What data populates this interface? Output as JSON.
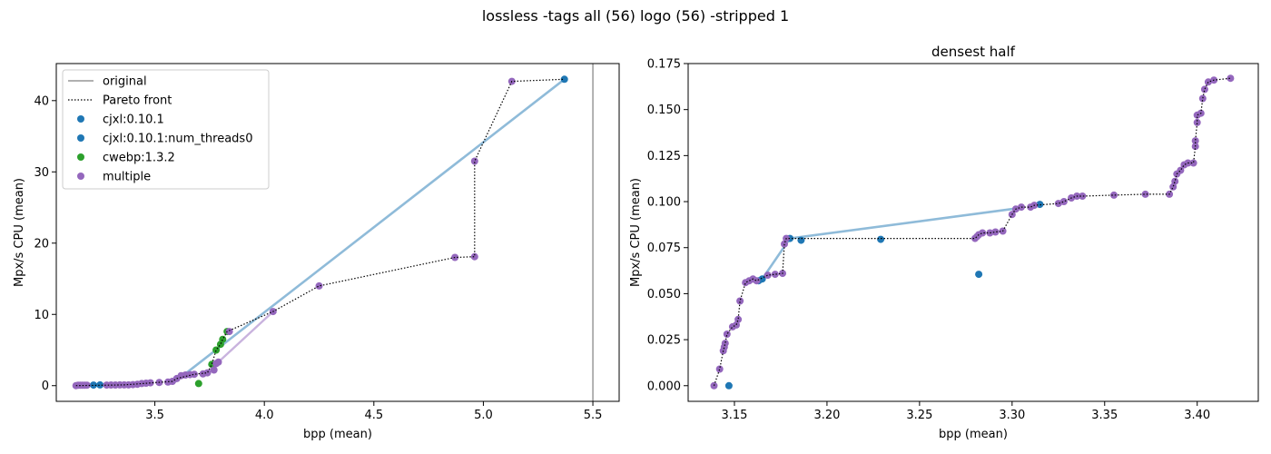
{
  "figure": {
    "suptitle": "lossless -tags all (56) logo (56) -stripped 1"
  },
  "colors": {
    "cjxl": "#1f77b4",
    "cwebp": "#2ca02c",
    "multiple": "#9467bd",
    "original": "#808080",
    "pareto": "#000000",
    "cjxl_line": "#8fbbd9",
    "multiple_line": "#c9b3de"
  },
  "chart_data": [
    {
      "type": "scatter",
      "title": "",
      "xlabel": "bpp (mean)",
      "ylabel": "Mpx/s CPU (mean)",
      "xlim": [
        3.05,
        5.62
      ],
      "ylim": [
        -2.2,
        45.2
      ],
      "xticks": [
        "3.5",
        "4.0",
        "4.5",
        "5.0",
        "5.5"
      ],
      "yticks": [
        "0",
        "10",
        "20",
        "30",
        "40"
      ],
      "legend": {
        "placement": "top-left",
        "entries": [
          "original",
          "Pareto front",
          "cjxl:0.10.1",
          "cjxl:0.10.1:num_threads0",
          "cwebp:1.3.2",
          "multiple"
        ]
      },
      "original_x": 5.5,
      "series": [
        {
          "name": "cjxl:0.10.1",
          "points": [
            [
              3.22,
              0.08
            ],
            [
              5.37,
              43.0
            ]
          ]
        },
        {
          "name": "cjxl:0.10.1:num_threads0",
          "points": [
            [
              3.25,
              0.1
            ]
          ]
        },
        {
          "name": "cwebp:1.3.2",
          "points": [
            [
              3.7,
              0.3
            ],
            [
              3.76,
              3.0
            ],
            [
              3.78,
              5.0
            ],
            [
              3.8,
              5.8
            ],
            [
              3.81,
              6.5
            ],
            [
              3.83,
              7.6
            ]
          ]
        },
        {
          "name": "multiple",
          "points": [
            [
              3.14,
              0.0
            ],
            [
              3.15,
              0.05
            ],
            [
              3.16,
              0.05
            ],
            [
              3.17,
              0.06
            ],
            [
              3.18,
              0.06
            ],
            [
              3.19,
              0.07
            ],
            [
              3.28,
              0.08
            ],
            [
              3.3,
              0.09
            ],
            [
              3.32,
              0.09
            ],
            [
              3.34,
              0.1
            ],
            [
              3.36,
              0.1
            ],
            [
              3.38,
              0.1
            ],
            [
              3.4,
              0.15
            ],
            [
              3.42,
              0.2
            ],
            [
              3.44,
              0.3
            ],
            [
              3.46,
              0.35
            ],
            [
              3.48,
              0.4
            ],
            [
              3.52,
              0.45
            ],
            [
              3.56,
              0.5
            ],
            [
              3.58,
              0.6
            ],
            [
              3.6,
              1.0
            ],
            [
              3.62,
              1.4
            ],
            [
              3.64,
              1.5
            ],
            [
              3.66,
              1.55
            ],
            [
              3.68,
              1.6
            ],
            [
              3.72,
              1.65
            ],
            [
              3.74,
              1.8
            ],
            [
              3.77,
              2.2
            ],
            [
              3.78,
              3.1
            ],
            [
              3.79,
              3.3
            ],
            [
              3.84,
              7.6
            ],
            [
              4.04,
              10.4
            ],
            [
              4.25,
              14.0
            ],
            [
              4.87,
              18.0
            ],
            [
              4.96,
              18.1
            ],
            [
              4.96,
              31.5
            ],
            [
              5.13,
              42.7
            ]
          ]
        }
      ],
      "pareto_front": [
        [
          3.14,
          0.0
        ],
        [
          3.36,
          0.1
        ],
        [
          3.58,
          0.6
        ],
        [
          3.6,
          1.0
        ],
        [
          3.68,
          1.6
        ],
        [
          3.74,
          1.8
        ],
        [
          3.76,
          3.0
        ],
        [
          3.78,
          5.0
        ],
        [
          3.8,
          5.8
        ],
        [
          3.81,
          6.5
        ],
        [
          3.83,
          7.6
        ],
        [
          4.04,
          10.4
        ],
        [
          4.25,
          14.0
        ],
        [
          4.87,
          18.0
        ],
        [
          4.96,
          18.1
        ],
        [
          4.96,
          31.5
        ],
        [
          5.13,
          42.7
        ],
        [
          5.37,
          43.0
        ]
      ],
      "cjxl_line": [
        [
          3.59,
          0.5
        ],
        [
          5.37,
          43.0
        ]
      ],
      "multiple_line": [
        [
          3.73,
          1.6
        ],
        [
          4.04,
          10.4
        ]
      ]
    },
    {
      "type": "scatter",
      "title": "densest half",
      "xlabel": "bpp (mean)",
      "ylabel": "Mpx/s CPU (mean)",
      "xlim": [
        3.125,
        3.433
      ],
      "ylim": [
        -0.0085,
        0.175
      ],
      "xticks": [
        "3.15",
        "3.20",
        "3.25",
        "3.30",
        "3.35",
        "3.40"
      ],
      "yticks": [
        "0.000",
        "0.025",
        "0.050",
        "0.075",
        "0.100",
        "0.125",
        "0.150",
        "0.175"
      ],
      "series": [
        {
          "name": "cjxl:0.10.1",
          "points": [
            [
              3.147,
              0.0
            ],
            [
              3.163,
              0.057
            ],
            [
              3.165,
              0.058
            ],
            [
              3.18,
              0.08
            ],
            [
              3.186,
              0.079
            ],
            [
              3.229,
              0.0795
            ],
            [
              3.282,
              0.0605
            ],
            [
              3.315,
              0.0985
            ]
          ]
        },
        {
          "name": "multiple",
          "points": [
            [
              3.139,
              0.0
            ],
            [
              3.142,
              0.009
            ],
            [
              3.144,
              0.019
            ],
            [
              3.1445,
              0.021
            ],
            [
              3.145,
              0.023
            ],
            [
              3.146,
              0.028
            ],
            [
              3.149,
              0.032
            ],
            [
              3.151,
              0.033
            ],
            [
              3.152,
              0.036
            ],
            [
              3.153,
              0.046
            ],
            [
              3.156,
              0.056
            ],
            [
              3.158,
              0.057
            ],
            [
              3.16,
              0.058
            ],
            [
              3.162,
              0.057
            ],
            [
              3.168,
              0.06
            ],
            [
              3.172,
              0.0605
            ],
            [
              3.176,
              0.061
            ],
            [
              3.177,
              0.077
            ],
            [
              3.178,
              0.08
            ],
            [
              3.28,
              0.08
            ],
            [
              3.281,
              0.081
            ],
            [
              3.282,
              0.082
            ],
            [
              3.284,
              0.083
            ],
            [
              3.288,
              0.083
            ],
            [
              3.291,
              0.0835
            ],
            [
              3.295,
              0.084
            ],
            [
              3.3,
              0.093
            ],
            [
              3.302,
              0.096
            ],
            [
              3.305,
              0.097
            ],
            [
              3.31,
              0.097
            ],
            [
              3.312,
              0.098
            ],
            [
              3.325,
              0.099
            ],
            [
              3.328,
              0.1
            ],
            [
              3.332,
              0.102
            ],
            [
              3.335,
              0.103
            ],
            [
              3.338,
              0.103
            ],
            [
              3.355,
              0.1035
            ],
            [
              3.372,
              0.104
            ],
            [
              3.385,
              0.104
            ],
            [
              3.387,
              0.108
            ],
            [
              3.388,
              0.111
            ],
            [
              3.389,
              0.115
            ],
            [
              3.391,
              0.117
            ],
            [
              3.393,
              0.12
            ],
            [
              3.395,
              0.121
            ],
            [
              3.398,
              0.121
            ],
            [
              3.399,
              0.13
            ],
            [
              3.399,
              0.133
            ],
            [
              3.4,
              0.143
            ],
            [
              3.4,
              0.147
            ],
            [
              3.402,
              0.148
            ],
            [
              3.403,
              0.156
            ],
            [
              3.404,
              0.161
            ],
            [
              3.406,
              0.165
            ],
            [
              3.409,
              0.166
            ],
            [
              3.418,
              0.167
            ]
          ]
        }
      ],
      "pareto_front": [
        [
          3.139,
          0.0
        ],
        [
          3.142,
          0.009
        ],
        [
          3.144,
          0.019
        ],
        [
          3.1445,
          0.021
        ],
        [
          3.145,
          0.023
        ],
        [
          3.146,
          0.028
        ],
        [
          3.149,
          0.032
        ],
        [
          3.151,
          0.033
        ],
        [
          3.152,
          0.036
        ],
        [
          3.153,
          0.046
        ],
        [
          3.156,
          0.056
        ],
        [
          3.158,
          0.057
        ],
        [
          3.16,
          0.058
        ],
        [
          3.162,
          0.057
        ],
        [
          3.168,
          0.06
        ],
        [
          3.172,
          0.0605
        ],
        [
          3.176,
          0.061
        ],
        [
          3.177,
          0.077
        ],
        [
          3.178,
          0.08
        ],
        [
          3.28,
          0.08
        ],
        [
          3.281,
          0.081
        ],
        [
          3.282,
          0.082
        ],
        [
          3.284,
          0.083
        ],
        [
          3.288,
          0.083
        ],
        [
          3.291,
          0.0835
        ],
        [
          3.295,
          0.084
        ],
        [
          3.3,
          0.093
        ],
        [
          3.302,
          0.096
        ],
        [
          3.305,
          0.097
        ],
        [
          3.31,
          0.097
        ],
        [
          3.312,
          0.098
        ],
        [
          3.325,
          0.099
        ],
        [
          3.328,
          0.1
        ],
        [
          3.332,
          0.102
        ],
        [
          3.335,
          0.103
        ],
        [
          3.338,
          0.103
        ],
        [
          3.355,
          0.1035
        ],
        [
          3.372,
          0.104
        ],
        [
          3.385,
          0.104
        ],
        [
          3.387,
          0.108
        ],
        [
          3.388,
          0.111
        ],
        [
          3.389,
          0.115
        ],
        [
          3.391,
          0.117
        ],
        [
          3.393,
          0.12
        ],
        [
          3.395,
          0.121
        ],
        [
          3.398,
          0.121
        ],
        [
          3.399,
          0.13
        ],
        [
          3.399,
          0.133
        ],
        [
          3.4,
          0.143
        ],
        [
          3.4,
          0.147
        ],
        [
          3.402,
          0.148
        ],
        [
          3.403,
          0.156
        ],
        [
          3.404,
          0.161
        ],
        [
          3.406,
          0.165
        ],
        [
          3.409,
          0.166
        ],
        [
          3.418,
          0.167
        ]
      ],
      "cjxl_line": [
        [
          3.158,
          0.0565
        ],
        [
          3.165,
          0.058
        ],
        [
          3.18,
          0.08
        ],
        [
          3.3,
          0.096
        ]
      ]
    }
  ]
}
